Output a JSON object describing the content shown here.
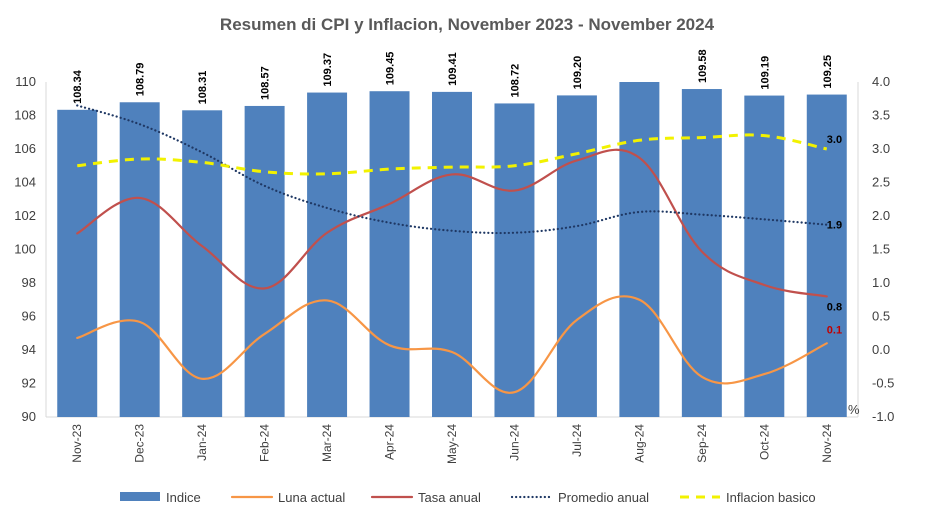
{
  "chart_data": {
    "type": "bar",
    "title": "Resumen di CPI y Inflacion, November 2023 - November 2024",
    "categories": [
      "Nov-23",
      "Dec-23",
      "Jan-24",
      "Feb-24",
      "Mar-24",
      "Apr-24",
      "May-24",
      "Jun-24",
      "Jul-24",
      "Aug-24",
      "Sep-24",
      "Oct-24",
      "Nov-24"
    ],
    "y_left": {
      "range": [
        90,
        110
      ],
      "ticks": [
        "90",
        "92",
        "94",
        "96",
        "98",
        "100",
        "102",
        "104",
        "106",
        "108",
        "110"
      ]
    },
    "y_right": {
      "range": [
        -1.0,
        4.0
      ],
      "unit": "%",
      "ticks": [
        "-1.0",
        "-0.5",
        "0.0",
        "0.5",
        "1.0",
        "1.5",
        "2.0",
        "2.5",
        "3.0",
        "3.5",
        "4.0"
      ]
    },
    "grid": false,
    "legend_position": "bottom",
    "series": [
      {
        "name": "Indice",
        "kind": "bar",
        "axis": "left",
        "color": "#4f81bd",
        "values": [
          108.34,
          108.79,
          108.31,
          108.57,
          109.37,
          109.45,
          109.41,
          108.72,
          109.2,
          110.0,
          109.58,
          109.19,
          109.25
        ],
        "labels": [
          "108.34",
          "108.79",
          "108.31",
          "108.57",
          "109.37",
          "109.45",
          "109.41",
          "108.72",
          "109.20",
          "",
          "109.58",
          "109.19",
          "109.25"
        ]
      },
      {
        "name": "Luna actual",
        "kind": "line",
        "axis": "right",
        "color": "#f79646",
        "values": [
          0.18,
          0.42,
          -0.43,
          0.24,
          0.74,
          0.07,
          -0.03,
          -0.63,
          0.45,
          0.75,
          -0.4,
          -0.36,
          0.1
        ],
        "end_label": "0.1",
        "end_label_color": "#c00000"
      },
      {
        "name": "Tasa anual",
        "kind": "line",
        "axis": "right",
        "color": "#c0504d",
        "values": [
          1.74,
          2.27,
          1.55,
          0.92,
          1.75,
          2.18,
          2.62,
          2.38,
          2.83,
          2.87,
          1.47,
          0.97,
          0.8
        ],
        "end_label": "0.8",
        "end_label_color": "#000000"
      },
      {
        "name": "Promedio anual",
        "kind": "dotted",
        "axis": "right",
        "color": "#1f3864",
        "values": [
          3.65,
          3.37,
          2.95,
          2.45,
          2.12,
          1.9,
          1.78,
          1.75,
          1.85,
          2.06,
          2.02,
          1.95,
          1.87
        ],
        "end_label": "1.9",
        "end_label_color": "#000000"
      },
      {
        "name": "Inflacion basico",
        "kind": "dashed",
        "axis": "right",
        "color": "#f2f200",
        "values": [
          2.75,
          2.85,
          2.8,
          2.66,
          2.63,
          2.7,
          2.73,
          2.75,
          2.93,
          3.13,
          3.17,
          3.2,
          3.0
        ],
        "end_label": "3.0",
        "end_label_color": "#000000"
      }
    ]
  }
}
